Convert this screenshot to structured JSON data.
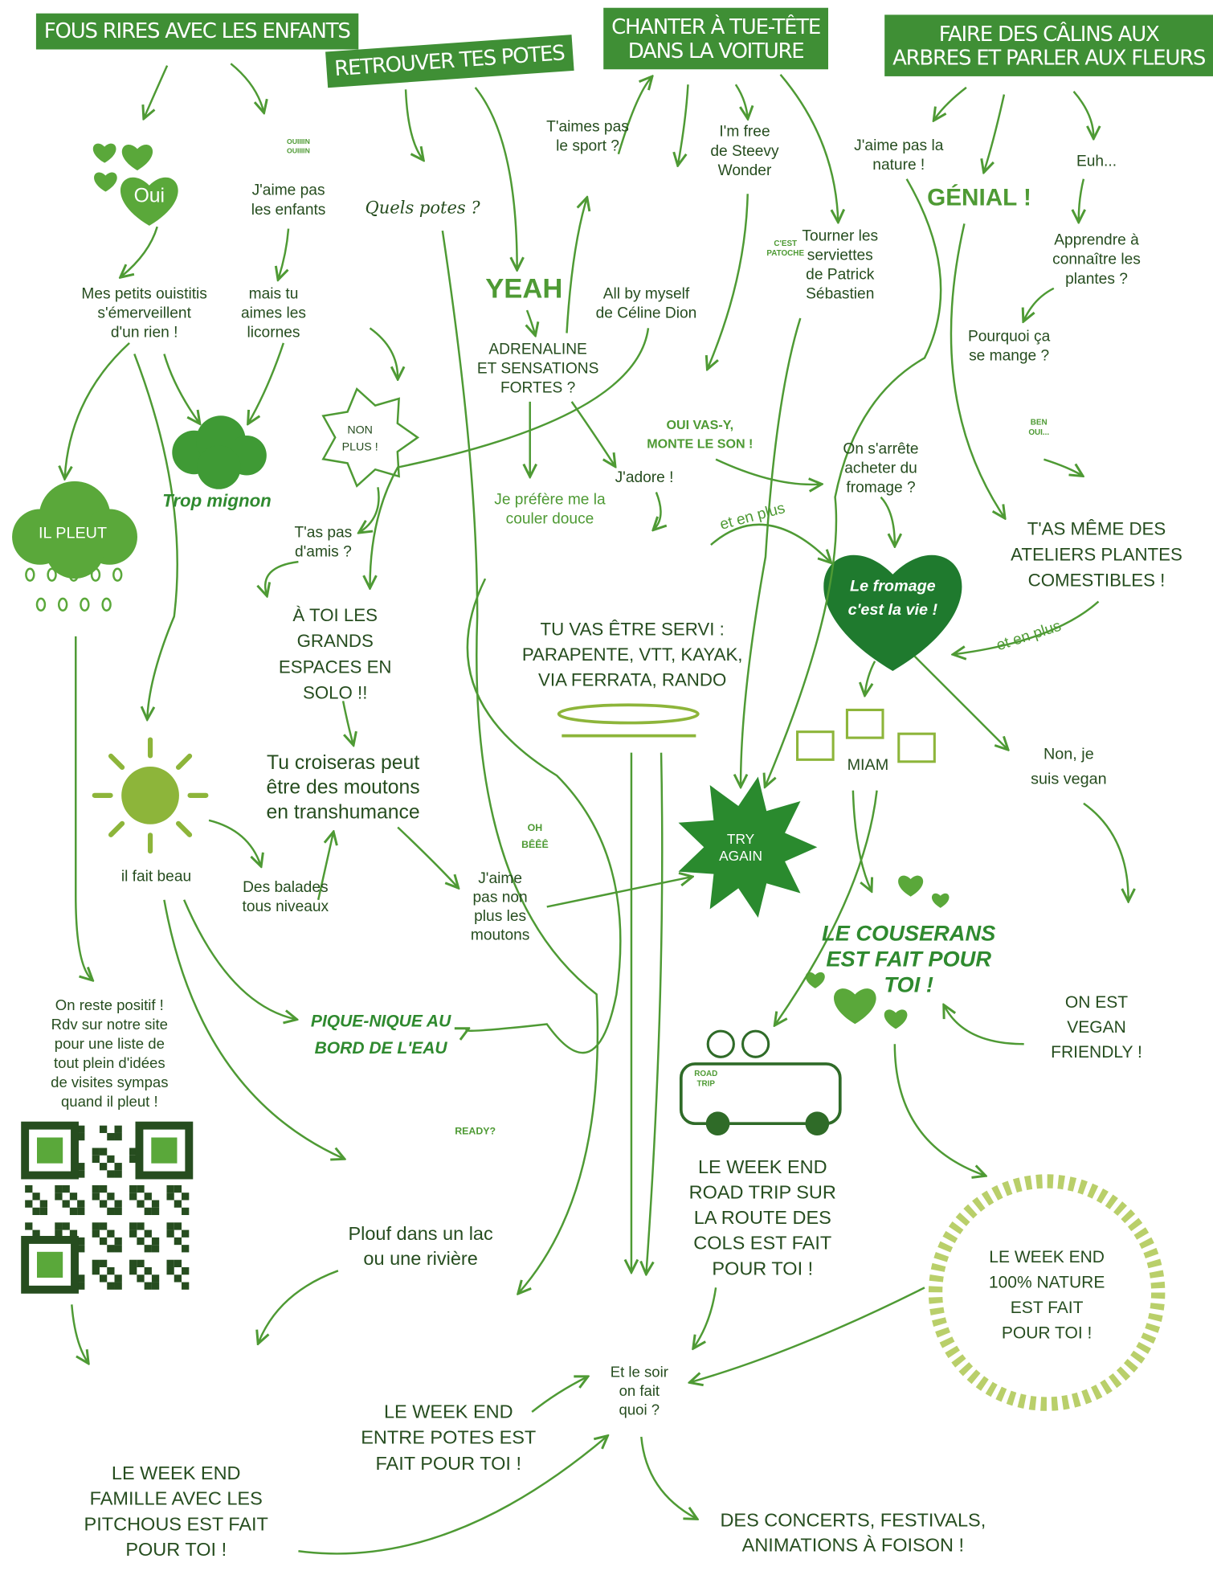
{
  "headers": [
    {
      "lines": [
        "FOUS RIRES AVEC LES ENFANTS"
      ]
    },
    {
      "lines": [
        "RETROUVER TES POTES"
      ]
    },
    {
      "lines": [
        "CHANTER À TUE-TÊTE",
        "DANS LA VOITURE"
      ]
    },
    {
      "lines": [
        "FAIRE DES CÂLINS AUX",
        "ARBRES ET PARLER AUX FLEURS"
      ]
    }
  ],
  "nodes": [
    {
      "lines": [
        "Oui"
      ]
    },
    {
      "lines": [
        "OUIIIIN",
        "OUIIIIN"
      ]
    },
    {
      "lines": [
        "J'aime pas",
        "les enfants"
      ]
    },
    {
      "lines": [
        "Mes petits ouistitis",
        "s'émerveillent",
        "d'un rien !"
      ]
    },
    {
      "lines": [
        "mais tu",
        "aimes les",
        "licornes"
      ]
    },
    {
      "lines": [
        "Trop mignon"
      ]
    },
    {
      "lines": [
        "NON",
        "PLUS !"
      ]
    },
    {
      "lines": [
        "IL PLEUT"
      ]
    },
    {
      "lines": [
        "T'as pas",
        "d'amis ?"
      ]
    },
    {
      "lines": [
        "À TOI LES",
        "GRANDS",
        "ESPACES EN",
        "SOLO !!"
      ]
    },
    {
      "lines": [
        "Tu croiseras peut",
        "être des moutons",
        "en transhumance"
      ]
    },
    {
      "lines": [
        "OH",
        "BÊÊÊ"
      ]
    },
    {
      "lines": [
        "il fait beau"
      ]
    },
    {
      "lines": [
        "Des balades",
        "tous niveaux"
      ]
    },
    {
      "lines": [
        "J'aime",
        "pas non",
        "plus les",
        "moutons"
      ]
    },
    {
      "lines": [
        "PIQUE-NIQUE AU",
        "BORD DE L'EAU"
      ]
    },
    {
      "lines": [
        "On reste positif !",
        "Rdv sur notre site",
        "pour une liste de",
        "tout plein d'idées",
        "de visites sympas",
        "quand il pleut !"
      ]
    },
    {
      "lines": [
        "READY?"
      ]
    },
    {
      "lines": [
        "Plouf dans un lac",
        "ou une rivière"
      ]
    },
    {
      "lines": [
        "LE WEEK END",
        "FAMILLE AVEC LES",
        "PITCHOUS EST FAIT",
        "POUR TOI !"
      ]
    },
    {
      "lines": [
        "LE WEEK END",
        "ENTRE POTES EST",
        "FAIT POUR TOI !"
      ]
    },
    {
      "lines": [
        "Quels potes ?"
      ]
    },
    {
      "lines": [
        "T'aimes pas",
        "le sport ?"
      ]
    },
    {
      "lines": [
        "I'm free",
        "de Steevy",
        "Wonder"
      ]
    },
    {
      "lines": [
        "All by myself",
        "de Céline Dion"
      ]
    },
    {
      "lines": [
        "YEAH"
      ]
    },
    {
      "lines": [
        "ADRENALINE",
        "ET SENSATIONS",
        "FORTES ?"
      ]
    },
    {
      "lines": [
        "OUI VAS-Y,",
        "MONTE LE SON !"
      ]
    },
    {
      "lines": [
        "J'adore !"
      ]
    },
    {
      "lines": [
        "Je préfère me la",
        "couler douce"
      ]
    },
    {
      "lines": [
        "et en plus"
      ]
    },
    {
      "lines": [
        "TU VAS ÊTRE SERVI :",
        "PARAPENTE, VTT, KAYAK,",
        "VIA FERRATA, RANDO"
      ]
    },
    {
      "lines": [
        "C'EST",
        "PATOCHE"
      ]
    },
    {
      "lines": [
        "Tourner les",
        "serviettes",
        "de Patrick",
        "Sébastien"
      ]
    },
    {
      "lines": [
        "J'aime pas la",
        "nature !"
      ]
    },
    {
      "lines": [
        "GÉNIAL !"
      ]
    },
    {
      "lines": [
        "Euh..."
      ]
    },
    {
      "lines": [
        "Apprendre à",
        "connaître les",
        "plantes ?"
      ]
    },
    {
      "lines": [
        "Pourquoi ça",
        "se mange ?"
      ]
    },
    {
      "lines": [
        "BEN",
        "OUI..."
      ]
    },
    {
      "lines": [
        "On s'arrête",
        "acheter du",
        "fromage ?"
      ]
    },
    {
      "lines": [
        "TRY",
        "AGAIN"
      ]
    },
    {
      "lines": [
        "Le fromage",
        "c'est la vie !"
      ]
    },
    {
      "lines": [
        "T'AS MÊME DES",
        "ATELIERS PLANTES",
        "COMESTIBLES !"
      ]
    },
    {
      "lines": [
        "et en plus"
      ]
    },
    {
      "lines": [
        "MIAM"
      ]
    },
    {
      "lines": [
        "Non, je",
        "suis vegan"
      ]
    },
    {
      "lines": [
        "LE COUSERANS",
        "EST FAIT POUR",
        "TOI !"
      ]
    },
    {
      "lines": [
        "ON EST",
        "VEGAN",
        "FRIENDLY !"
      ]
    },
    {
      "lines": [
        "LE WEEK END",
        "ROAD TRIP SUR",
        "LA ROUTE DES",
        "COLS EST FAIT",
        "POUR TOI !"
      ]
    },
    {
      "lines": [
        "LE WEEK END",
        "100% NATURE",
        "EST FAIT",
        "POUR TOI !"
      ]
    },
    {
      "lines": [
        "Et le soir",
        "on fait",
        "quoi ?"
      ]
    },
    {
      "lines": [
        "DES CONCERTS, FESTIVALS,",
        "ANIMATIONS À FOISON !"
      ]
    },
    {
      "lines": [
        "ROAD",
        "TRIP"
      ]
    }
  ]
}
